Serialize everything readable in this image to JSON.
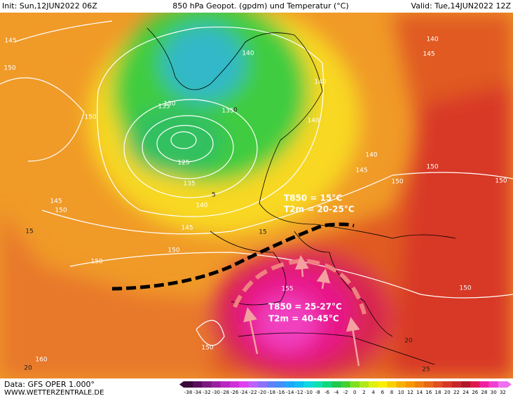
{
  "header": {
    "init": "Init: Sun,12JUN2022 06Z",
    "title": "850 hPa Geopot. (gpdm) und Temperatur (°C)",
    "valid": "Valid: Tue,14JUN2022 12Z"
  },
  "map": {
    "geopotential_labels": [
      "145",
      "150",
      "150",
      "145",
      "150",
      "145",
      "150",
      "140",
      "135",
      "125",
      "130",
      "135",
      "135",
      "140",
      "140",
      "140",
      "145",
      "140",
      "150",
      "150",
      "145",
      "140",
      "150",
      "150",
      "155",
      "150",
      "160",
      "150"
    ],
    "temperature_labels": [
      "15",
      "20",
      "25",
      "20",
      "5",
      "0",
      "15"
    ],
    "annotations": {
      "north_t850": "T850 = 15°C",
      "north_t2m": "T2m = 20-25°C",
      "south_t850": "T850 = 25-27°C",
      "south_t2m": "T2m = 40-45°C"
    }
  },
  "footer": {
    "data": "Data: GFS OPER 1.000°",
    "site": "WWW.WETTERZENTRALE.DE"
  },
  "legend": {
    "labels": [
      -38,
      -34,
      -32,
      -30,
      -28,
      -26,
      -24,
      -22,
      -20,
      -18,
      -16,
      -14,
      -12,
      -10,
      -8,
      -6,
      -4,
      -2,
      0,
      2,
      4,
      6,
      8,
      10,
      12,
      14,
      16,
      18,
      20,
      22,
      24,
      26,
      28,
      30,
      32
    ],
    "colors": [
      "#3a0a3a",
      "#5a1060",
      "#7a1a80",
      "#9a20a0",
      "#b828c0",
      "#d030d8",
      "#e040f0",
      "#c060f8",
      "#9070f8",
      "#6080f8",
      "#4090f8",
      "#20a8f8",
      "#10c0f0",
      "#10d8e0",
      "#10e0b0",
      "#10d880",
      "#20c850",
      "#40d030",
      "#80e020",
      "#b0e818",
      "#e0f010",
      "#f8f000",
      "#f8d000",
      "#f8b000",
      "#f89800",
      "#f08010",
      "#e86818",
      "#e05020",
      "#d83828",
      "#c82828",
      "#b01828",
      "#e01850",
      "#f020a0",
      "#f040d0",
      "#f070f0"
    ]
  }
}
